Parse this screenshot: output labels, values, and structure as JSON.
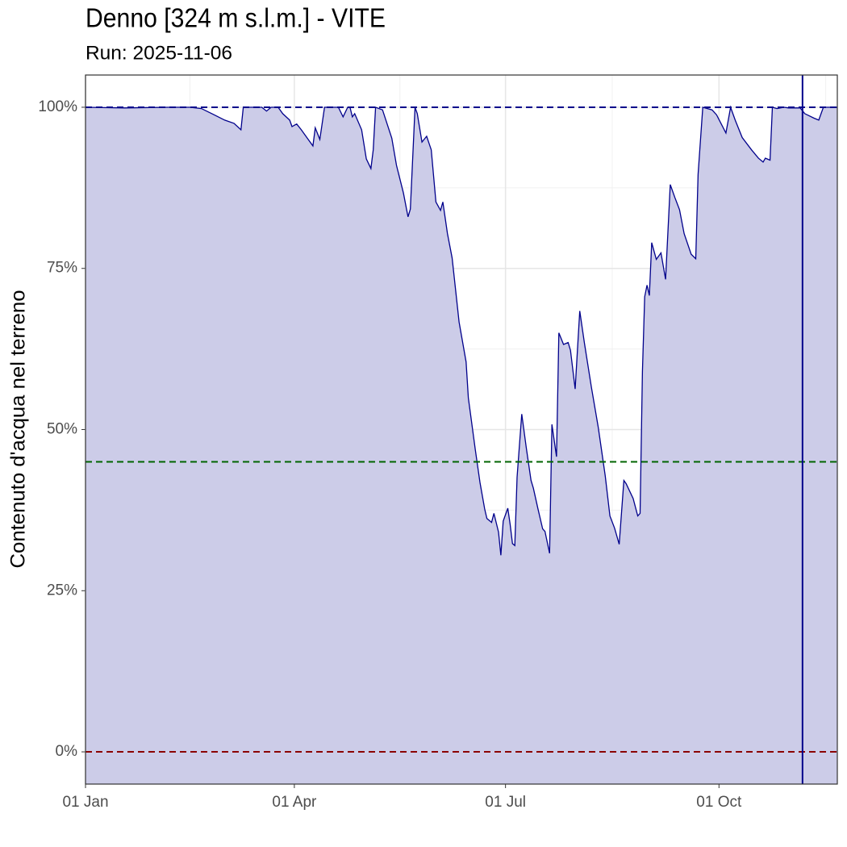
{
  "chart_data": {
    "type": "area",
    "title": "Denno [324 m s.l.m.] - VITE",
    "subtitle": "Run: 2025-11-06",
    "y_label": "Contenuto d'acqua nel terreno",
    "line_color": "#00008b",
    "fill_color": "#cccce8",
    "grid": true,
    "xlim": [
      "01 Jan",
      "21 Nov"
    ],
    "xticks": [
      "01 Jan",
      "01 Apr",
      "01 Jul",
      "01 Oct"
    ],
    "ylim": [
      -5,
      105
    ],
    "yticks": [
      {
        "value": 0,
        "label": "0%"
      },
      {
        "value": 25,
        "label": "25%"
      },
      {
        "value": 50,
        "label": "50%"
      },
      {
        "value": 75,
        "label": "75%"
      },
      {
        "value": 100,
        "label": "100%"
      }
    ],
    "hlines": [
      {
        "value": 100,
        "color": "#00008b"
      },
      {
        "value": 45,
        "color": "#006400"
      },
      {
        "value": 0,
        "color": "#8b0000"
      }
    ],
    "vline": {
      "x": "06 Nov",
      "color": "#00008b"
    },
    "x": [
      "01 Jan",
      "18 Jan",
      "06 Feb",
      "15 Feb",
      "20 Feb",
      "25 Feb",
      "02 Mar",
      "06 Mar",
      "09 Mar",
      "10 Mar",
      "18 Mar",
      "20 Mar",
      "22 Mar",
      "25 Mar",
      "27 Mar",
      "30 Mar",
      "31 Mar",
      "02 Apr",
      "04 Apr",
      "07 Apr",
      "09 Apr",
      "10 Apr",
      "12 Apr",
      "14 Apr",
      "20 Apr",
      "22 Apr",
      "24 Apr",
      "25 Apr",
      "26 Apr",
      "27 Apr",
      "30 Apr",
      "02 May",
      "04 May",
      "05 May",
      "06 May",
      "09 May",
      "13 May",
      "15 May",
      "18 May",
      "20 May",
      "21 May",
      "23 May",
      "24 May",
      "26 May",
      "28 May",
      "30 May",
      "01 Jun",
      "03 Jun",
      "04 Jun",
      "06 Jun",
      "08 Jun",
      "11 Jun",
      "14 Jun",
      "15 Jun",
      "18 Jun",
      "20 Jun",
      "22 Jun",
      "23 Jun",
      "25 Jun",
      "26 Jun",
      "28 Jun",
      "29 Jun",
      "30 Jun",
      "02 Jul",
      "03 Jul",
      "04 Jul",
      "05 Jul",
      "06 Jul",
      "08 Jul",
      "10 Jul",
      "12 Jul",
      "13 Jul",
      "15 Jul",
      "17 Jul",
      "18 Jul",
      "20 Jul",
      "21 Jul",
      "23 Jul",
      "24 Jul",
      "26 Jul",
      "28 Jul",
      "29 Jul",
      "31 Jul",
      "02 Aug",
      "04 Aug",
      "07 Aug",
      "10 Aug",
      "13 Aug",
      "15 Aug",
      "17 Aug",
      "19 Aug",
      "21 Aug",
      "22 Aug",
      "25 Aug",
      "27 Aug",
      "28 Aug",
      "29 Aug",
      "30 Aug",
      "31 Aug",
      "01 Sep",
      "02 Sep",
      "04 Sep",
      "06 Sep",
      "08 Sep",
      "10 Sep",
      "12 Sep",
      "14 Sep",
      "16 Sep",
      "19 Sep",
      "21 Sep",
      "22 Sep",
      "24 Sep",
      "28 Sep",
      "30 Sep",
      "04 Oct",
      "06 Oct",
      "08 Oct",
      "11 Oct",
      "15 Oct",
      "18 Oct",
      "20 Oct",
      "21 Oct",
      "23 Oct",
      "24 Oct",
      "26 Oct",
      "29 Oct",
      "31 Oct",
      "05 Nov",
      "07 Nov",
      "11 Nov",
      "13 Nov",
      "15 Nov",
      "21 Nov"
    ],
    "values": [
      100,
      99.9,
      100,
      100,
      99.8,
      98.9,
      98,
      97.5,
      96.5,
      100,
      100,
      99.4,
      100,
      100,
      99,
      98,
      97,
      97.4,
      96.5,
      95,
      94,
      96.8,
      95,
      100,
      100,
      98.5,
      100,
      100,
      98.5,
      99,
      96.5,
      92,
      90.5,
      93.4,
      100,
      99.6,
      95.2,
      91,
      86.7,
      83,
      84.2,
      100,
      99,
      94.6,
      95.5,
      93.4,
      85.3,
      84,
      85.3,
      80.4,
      76.6,
      66.7,
      60.5,
      54.9,
      46.8,
      41.8,
      37.7,
      36.2,
      35.6,
      37,
      34.1,
      30.5,
      35.8,
      37.8,
      35.3,
      32.3,
      32,
      42.6,
      52.4,
      47.1,
      42.1,
      40.9,
      37.7,
      34.6,
      34.2,
      30.8,
      50.8,
      45.8,
      65,
      63.2,
      63.5,
      62.3,
      56.3,
      68.4,
      63.4,
      56.6,
      50.3,
      42.8,
      36.6,
      34.7,
      32.2,
      42.1,
      41.6,
      39.3,
      36.6,
      37,
      59,
      70.6,
      72.4,
      70.8,
      79,
      76.4,
      77.4,
      73.3,
      88,
      86,
      84.1,
      80.4,
      77.2,
      76.5,
      89.6,
      100,
      99.6,
      98.8,
      96,
      100,
      98,
      95.3,
      93.4,
      92.1,
      91.5,
      92.1,
      91.8,
      100,
      99.8,
      100,
      99.9,
      99.9,
      99,
      98.3,
      98,
      100,
      100
    ]
  }
}
